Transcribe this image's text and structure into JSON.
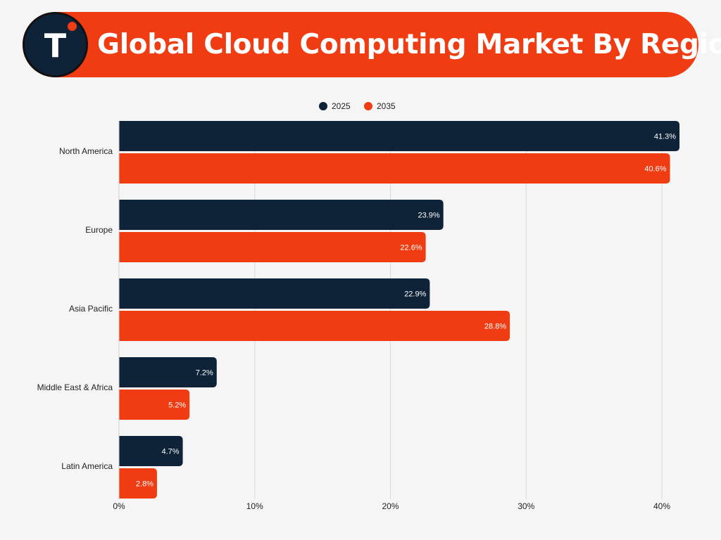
{
  "header": {
    "title": "Global Cloud Computing Market By Region",
    "logo_letter": "T"
  },
  "colors": {
    "primary": "#0e2238",
    "accent": "#ef3c12",
    "background": "#f5f5f5",
    "grid": "#d9d9d9"
  },
  "chart_data": {
    "type": "bar",
    "orientation": "horizontal",
    "categories": [
      "North America",
      "Europe",
      "Asia Pacific",
      "Middle East & Africa",
      "Latin America"
    ],
    "series": [
      {
        "name": "2025",
        "color": "#0e2238",
        "values": [
          41.3,
          23.9,
          22.9,
          7.2,
          4.7
        ],
        "labels": [
          "41.3%",
          "23.9%",
          "22.9%",
          "7.2%",
          "4.7%"
        ]
      },
      {
        "name": "2035",
        "color": "#ef3c12",
        "values": [
          40.6,
          22.6,
          28.8,
          5.2,
          2.8
        ],
        "labels": [
          "40.6%",
          "22.6%",
          "28.8%",
          "5.2%",
          "2.8%"
        ]
      }
    ],
    "xlim": [
      0,
      40
    ],
    "xticks": [
      0,
      10,
      20,
      30,
      40
    ],
    "xtick_labels": [
      "0%",
      "10%",
      "20%",
      "30%",
      "40%"
    ],
    "grid": true,
    "legend_position": "top-center"
  }
}
